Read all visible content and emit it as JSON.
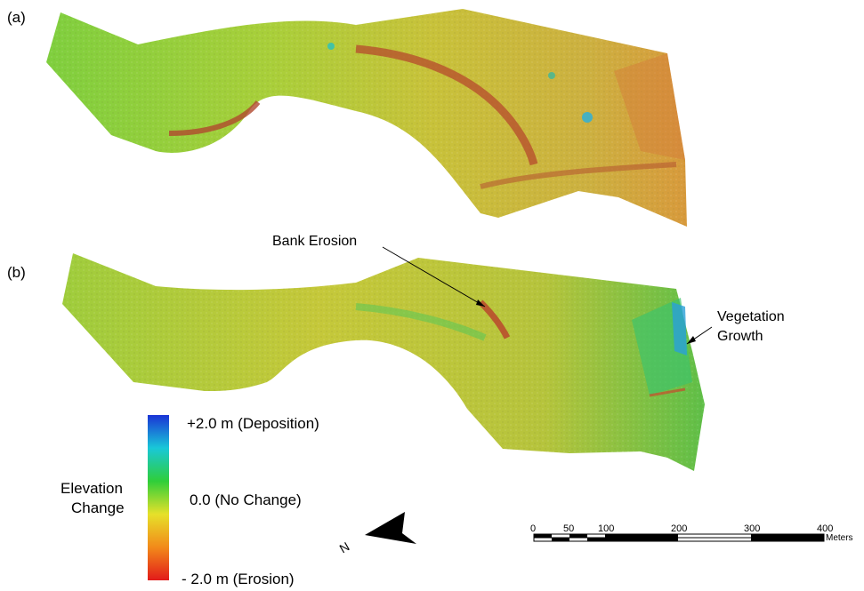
{
  "panels": [
    {
      "label": "(a)"
    },
    {
      "label": "(b)"
    }
  ],
  "annotations": {
    "bank_erosion": "Bank Erosion",
    "vegetation_growth_line1": "Vegetation",
    "vegetation_growth_line2": "Growth"
  },
  "legend": {
    "title_line1": "Elevation",
    "title_line2": "Change",
    "max_label": "+2.0 m (Deposition)",
    "mid_label": "0.0 (No Change)",
    "min_label": "- 2.0 m (Erosion)",
    "colors": [
      "#1a33d6",
      "#19c8d8",
      "#2fce3a",
      "#e6e12a",
      "#f28a1a",
      "#e21a1a"
    ]
  },
  "north_arrow": {
    "label": "N"
  },
  "scale_bar": {
    "ticks": [
      "0",
      "50",
      "100",
      "200",
      "300",
      "400"
    ],
    "unit": "Meters"
  }
}
